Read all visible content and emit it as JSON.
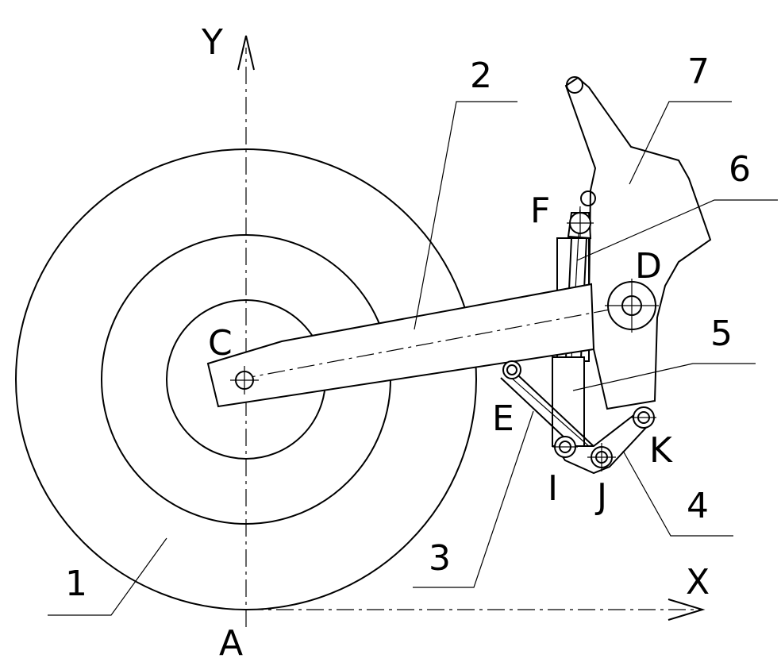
{
  "axes": {
    "x_label": "X",
    "y_label": "Y"
  },
  "points": {
    "A": "A",
    "C": "C",
    "D": "D",
    "E": "E",
    "F": "F",
    "I": "I",
    "J": "J",
    "K": "K"
  },
  "parts": {
    "p1": "1",
    "p2": "2",
    "p3": "3",
    "p4": "4",
    "p5": "5",
    "p6": "6",
    "p7": "7"
  }
}
